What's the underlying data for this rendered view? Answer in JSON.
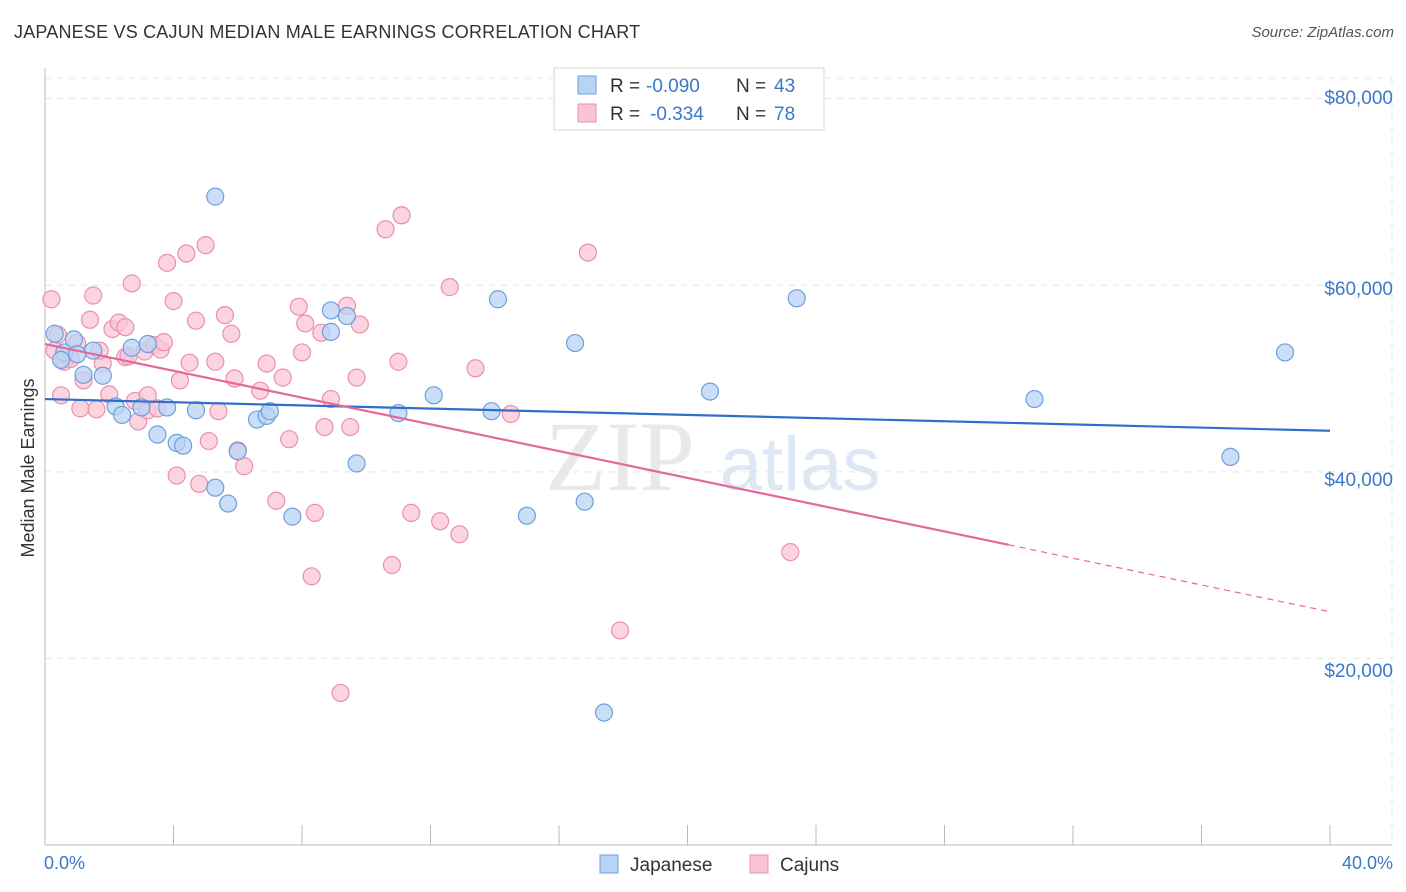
{
  "title": "JAPANESE VS CAJUN MEDIAN MALE EARNINGS CORRELATION CHART",
  "source": "Source: ZipAtlas.com",
  "watermark": {
    "zip": "ZIP",
    "atlas": "atlas"
  },
  "legend": {
    "rows": [
      {
        "r_label": "R =",
        "r_value": "-0.090",
        "n_label": "N =",
        "n_value": "43"
      },
      {
        "r_label": "R =",
        "r_value": "-0.334",
        "n_label": "N =",
        "n_value": "78"
      }
    ]
  },
  "colors": {
    "japanese_fill": "#b9d3f4",
    "japanese_stroke": "#6e9fdc",
    "japanese_line": "#2f6fcb",
    "cajun_fill": "#f9c5d6",
    "cajun_stroke": "#ec8fae",
    "cajun_line": "#e4679a",
    "grid": "#e3e3e3",
    "axis_text": "#3b78c8"
  },
  "chart_data": {
    "type": "scatter",
    "title": "JAPANESE VS CAJUN MEDIAN MALE EARNINGS CORRELATION CHART",
    "xlabel": "",
    "ylabel": "Median Male Earnings",
    "xlim": [
      0,
      40
    ],
    "ylim": [
      0,
      82000
    ],
    "x_tick_labels": [
      "0.0%",
      "40.0%"
    ],
    "y_ticks": [
      20000,
      40000,
      60000,
      80000
    ],
    "y_tick_labels": [
      "$20,000",
      "$40,000",
      "$60,000",
      "$80,000"
    ],
    "grid": true,
    "legend_position": "top-center",
    "series": [
      {
        "name": "Japanese",
        "r": -0.09,
        "n": 43,
        "trend": {
          "x": [
            0,
            40
          ],
          "y": [
            47800,
            44400
          ],
          "dashed_from": null
        },
        "points": [
          [
            0.3,
            54800
          ],
          [
            0.6,
            52800
          ],
          [
            0.9,
            54200
          ],
          [
            1.2,
            50400
          ],
          [
            1.5,
            53000
          ],
          [
            1.8,
            50300
          ],
          [
            2.2,
            47000
          ],
          [
            2.4,
            46100
          ],
          [
            2.7,
            53300
          ],
          [
            3.0,
            46900
          ],
          [
            3.2,
            53700
          ],
          [
            3.5,
            44000
          ],
          [
            3.8,
            46900
          ],
          [
            4.1,
            43100
          ],
          [
            4.3,
            42800
          ],
          [
            4.7,
            46600
          ],
          [
            5.3,
            38300
          ],
          [
            5.3,
            69500
          ],
          [
            5.7,
            36600
          ],
          [
            6.0,
            42200
          ],
          [
            6.6,
            45600
          ],
          [
            6.9,
            46000
          ],
          [
            7.0,
            46500
          ],
          [
            7.7,
            35200
          ],
          [
            8.9,
            57300
          ],
          [
            8.9,
            55000
          ],
          [
            9.4,
            56700
          ],
          [
            9.7,
            40900
          ],
          [
            11.0,
            46300
          ],
          [
            12.1,
            48200
          ],
          [
            13.9,
            46500
          ],
          [
            14.1,
            58500
          ],
          [
            15.0,
            35300
          ],
          [
            16.5,
            53800
          ],
          [
            16.8,
            36800
          ],
          [
            17.4,
            14200
          ],
          [
            20.7,
            48600
          ],
          [
            23.4,
            58600
          ],
          [
            30.8,
            47800
          ],
          [
            36.9,
            41600
          ],
          [
            38.6,
            52800
          ],
          [
            0.5,
            52000
          ],
          [
            1.0,
            52600
          ]
        ]
      },
      {
        "name": "Cajuns",
        "r": -0.334,
        "n": 78,
        "trend": {
          "x": [
            0,
            40
          ],
          "y": [
            53700,
            25000
          ],
          "dashed_from": 30
        },
        "points": [
          [
            0.2,
            58500
          ],
          [
            0.3,
            53000
          ],
          [
            0.5,
            48200
          ],
          [
            0.6,
            51800
          ],
          [
            0.8,
            52100
          ],
          [
            1.0,
            53800
          ],
          [
            1.2,
            49800
          ],
          [
            1.4,
            56300
          ],
          [
            1.5,
            58900
          ],
          [
            1.6,
            46700
          ],
          [
            1.8,
            51600
          ],
          [
            2.0,
            48300
          ],
          [
            2.1,
            55300
          ],
          [
            2.3,
            56000
          ],
          [
            2.5,
            52300
          ],
          [
            2.5,
            55500
          ],
          [
            2.6,
            52400
          ],
          [
            2.7,
            60200
          ],
          [
            2.8,
            47600
          ],
          [
            2.9,
            45400
          ],
          [
            3.1,
            52900
          ],
          [
            3.2,
            46600
          ],
          [
            3.2,
            48200
          ],
          [
            3.4,
            53600
          ],
          [
            3.5,
            46800
          ],
          [
            3.6,
            53100
          ],
          [
            3.7,
            53900
          ],
          [
            3.8,
            62400
          ],
          [
            4.0,
            58300
          ],
          [
            4.1,
            39600
          ],
          [
            4.2,
            49800
          ],
          [
            4.4,
            63400
          ],
          [
            4.5,
            51700
          ],
          [
            4.7,
            56200
          ],
          [
            4.8,
            38700
          ],
          [
            5.0,
            64300
          ],
          [
            5.1,
            43300
          ],
          [
            5.3,
            51800
          ],
          [
            5.4,
            46500
          ],
          [
            5.6,
            56800
          ],
          [
            5.8,
            54800
          ],
          [
            5.9,
            50000
          ],
          [
            6.0,
            42300
          ],
          [
            6.2,
            40600
          ],
          [
            6.7,
            48700
          ],
          [
            6.9,
            51600
          ],
          [
            7.2,
            36900
          ],
          [
            7.4,
            50100
          ],
          [
            7.6,
            43500
          ],
          [
            7.9,
            57700
          ],
          [
            8.0,
            52800
          ],
          [
            8.1,
            55900
          ],
          [
            8.3,
            28800
          ],
          [
            8.4,
            35600
          ],
          [
            8.6,
            54900
          ],
          [
            8.7,
            44800
          ],
          [
            8.9,
            47800
          ],
          [
            9.2,
            16300
          ],
          [
            9.4,
            57800
          ],
          [
            9.5,
            44800
          ],
          [
            9.7,
            50100
          ],
          [
            9.8,
            55800
          ],
          [
            10.6,
            66000
          ],
          [
            10.8,
            30000
          ],
          [
            11.0,
            51800
          ],
          [
            11.1,
            67500
          ],
          [
            11.4,
            35600
          ],
          [
            12.3,
            34700
          ],
          [
            12.6,
            59800
          ],
          [
            12.9,
            33300
          ],
          [
            13.4,
            51100
          ],
          [
            14.5,
            46200
          ],
          [
            16.9,
            63500
          ],
          [
            17.9,
            23000
          ],
          [
            23.2,
            31400
          ],
          [
            0.4,
            54700
          ],
          [
            1.1,
            46800
          ],
          [
            1.7,
            53000
          ]
        ]
      }
    ]
  }
}
